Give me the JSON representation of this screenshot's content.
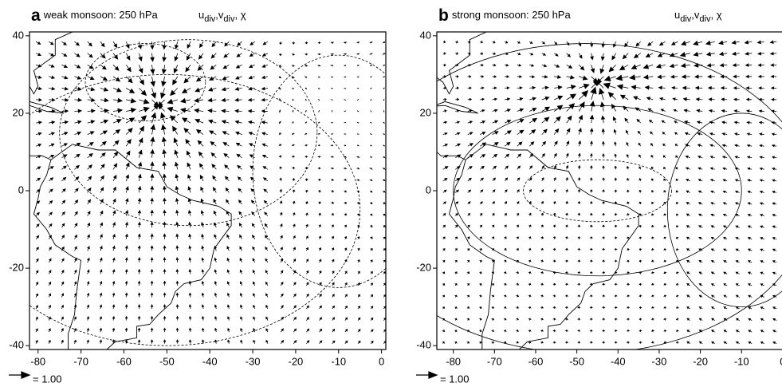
{
  "panels": [
    {
      "letter": "a",
      "title": "weak monsoon: 250 hPa",
      "vars": [
        {
          "base": "u",
          "sub": "div"
        },
        {
          "base": ",v",
          "sub": "div"
        },
        {
          "base": ", χ"
        }
      ],
      "xlim": [
        -82,
        1
      ],
      "xticks": [
        -80,
        -70,
        -60,
        -50,
        -40,
        -30,
        -20,
        -10,
        0
      ],
      "ylim": [
        -41,
        41
      ],
      "yticks": [
        -40,
        -20,
        0,
        20,
        40
      ],
      "reference_label": "= 1.00"
    },
    {
      "letter": "b",
      "title": "strong monsoon: 250 hPa",
      "vars": [
        {
          "base": "u",
          "sub": "div"
        },
        {
          "base": ",v",
          "sub": "div"
        },
        {
          "base": ", χ"
        }
      ],
      "xlim": [
        -84,
        0.6
      ],
      "xticks": [
        -80,
        -70,
        -60,
        -50,
        -40,
        -30,
        -20,
        -10,
        0
      ],
      "ylim": [
        -41,
        41
      ],
      "yticks": [
        -40,
        -20,
        0,
        20,
        40
      ],
      "reference_label": "= 1.00"
    }
  ]
}
